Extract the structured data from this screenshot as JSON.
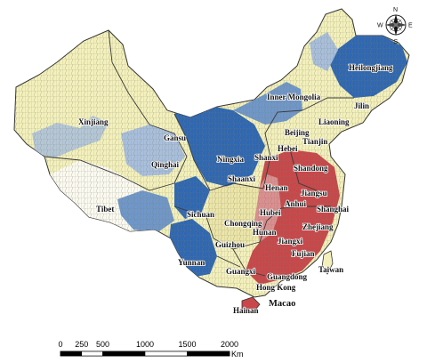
{
  "colors": {
    "background": "#ffffff",
    "yellow": "#f3f0bb",
    "pale": "#e6e2b8",
    "light_blue": "#a8bfdc",
    "mid_blue": "#6f97c9",
    "dark_blue": "#2f67b1",
    "red": "#c8474a",
    "pink": "#dc8f90",
    "border": "#555555"
  },
  "labels": {
    "xinjiang": "Xinjiang",
    "tibet": "Tibet",
    "qinghai": "Qinghai",
    "gansu": "Gansu",
    "inner_mongolia": "Inner Mongolia",
    "heilongjiang": "Heilongjiang",
    "jilin": "Jilin",
    "liaoning": "Liaoning",
    "beijing": "Beijing",
    "tianjin": "Tianjin",
    "hebei": "Hebei",
    "ningxia": "Ningxia",
    "shanxi": "Shanxi",
    "shaanxi": "Shaanxi",
    "shandong": "Shandong",
    "henan": "Henan",
    "jiangsu": "Jiangsu",
    "anhui": "Anhui",
    "shanghai": "Shanghai",
    "hubei": "Hubei",
    "sichuan": "Sichuan",
    "chongqing": "Chongqing",
    "hunan": "Hunan",
    "zhejiang": "Zhejiang",
    "jiangxi": "Jiangxi",
    "guizhou": "Guizhou",
    "fujian": "Fujian",
    "yunnan": "Yunnan",
    "guangxi": "Guangxi",
    "guangdong": "Guangdong",
    "taiwan": "Taiwan",
    "hong_kong": "Hong Kong",
    "macao": "Macao",
    "hainan": "Hainan"
  },
  "compass": {
    "n": "N",
    "e": "E",
    "s": "S",
    "w": "W"
  },
  "scale_bar": {
    "ticks": [
      "0",
      "250",
      "500",
      "1000",
      "1500",
      "2000"
    ],
    "tick_values": [
      0,
      250,
      500,
      1000,
      1500,
      2000
    ],
    "unit": "Km"
  }
}
